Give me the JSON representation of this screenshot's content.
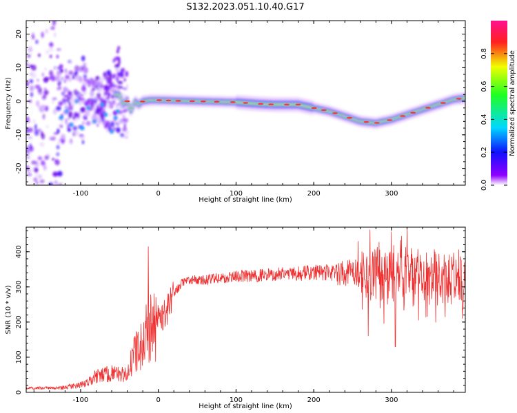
{
  "title": "S132.2023.051.10.40.G17",
  "colors": {
    "snr_line": "#f03030",
    "axis": "#000000"
  },
  "chart_data": [
    {
      "type": "heatmap",
      "title": "S132.2023.051.10.40.G17",
      "xlabel": "Height of straight line (km)",
      "ylabel": "Frequency (Hz)",
      "xlim": [
        -170,
        395
      ],
      "ylim": [
        -25,
        24
      ],
      "x_ticks": [
        -100,
        0,
        100,
        200,
        300
      ],
      "y_ticks": [
        -20,
        -10,
        0,
        10,
        20
      ],
      "colorbar": {
        "label": "Normalized spectral amplitude",
        "range": [
          0.0,
          1.0
        ],
        "ticks": [
          0.0,
          0.2,
          0.4,
          0.6,
          0.8
        ],
        "colormap": "gist_rainbow_r (white→purple→blue→cyan→green→yellow→red→magenta)"
      },
      "ridge": {
        "x": [
          -50,
          -45,
          -40,
          -35,
          -30,
          -25,
          -20,
          -10,
          0,
          50,
          100,
          130,
          150,
          180,
          200,
          220,
          240,
          260,
          280,
          300,
          320,
          340,
          360,
          380,
          395
        ],
        "y": [
          2,
          -1,
          0,
          -3,
          0,
          -1,
          0,
          0.3,
          0.3,
          0,
          -0.3,
          -0.8,
          -1,
          -1,
          -2,
          -3,
          -4.5,
          -6,
          -6.5,
          -5.5,
          -4,
          -2.5,
          -1,
          0.5,
          1
        ]
      }
    },
    {
      "type": "line",
      "xlabel": "Height of straight line (km)",
      "ylabel": "SNR (10 * v/v)",
      "xlim": [
        -170,
        395
      ],
      "ylim": [
        0,
        470
      ],
      "x_ticks": [
        -100,
        0,
        100,
        200,
        300
      ],
      "y_ticks": [
        0,
        100,
        200,
        300,
        400
      ],
      "envelope": {
        "x": [
          -170,
          -130,
          -100,
          -80,
          -60,
          -45,
          -40,
          -30,
          -20,
          -15,
          -10,
          0,
          10,
          20,
          30,
          40,
          60,
          100,
          150,
          200,
          250,
          270,
          300,
          320,
          350,
          395
        ],
        "y": [
          12,
          12,
          20,
          45,
          55,
          50,
          50,
          110,
          140,
          170,
          180,
          200,
          230,
          280,
          310,
          320,
          320,
          330,
          335,
          340,
          340,
          330,
          330,
          330,
          330,
          320
        ]
      },
      "spikes": [
        {
          "x": -13,
          "y": 415
        },
        {
          "x": -18,
          "y": 110
        },
        {
          "x": 270,
          "y": 160
        },
        {
          "x": 320,
          "y": 470
        },
        {
          "x": 305,
          "y": 130
        }
      ]
    }
  ]
}
